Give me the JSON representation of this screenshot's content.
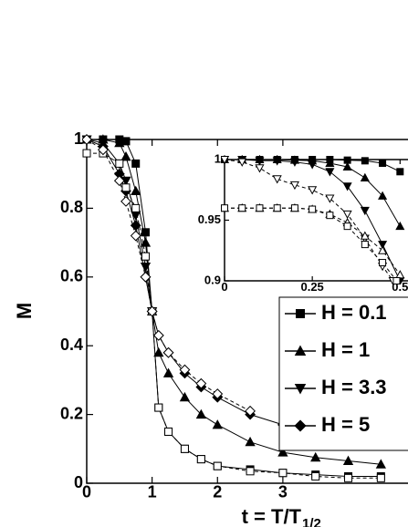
{
  "chart_data": [
    {
      "type": "line",
      "xlabel": "t = T/T",
      "xlabel_subscript": "1/2",
      "ylabel": "M",
      "xlim": [
        0,
        4.9
      ],
      "ylim": [
        0,
        1
      ],
      "xticks": [
        0,
        1,
        2,
        3
      ],
      "yticks": [
        0,
        0.2,
        0.4,
        0.6,
        0.8,
        1
      ],
      "legend": "lower right",
      "series": [
        {
          "name": "H = 0.1",
          "color": "#000000",
          "marker": "square",
          "filled": true,
          "dash": false,
          "x": [
            0,
            0.25,
            0.5,
            0.6,
            0.75,
            0.9,
            1,
            1.1,
            1.25,
            1.5,
            1.75,
            2,
            2.5,
            3,
            3.5,
            4,
            4.5
          ],
          "values": [
            1,
            1,
            1,
            0.995,
            0.93,
            0.73,
            0.5,
            0.22,
            0.15,
            0.1,
            0.07,
            0.05,
            0.04,
            0.03,
            0.025,
            0.02,
            0.02
          ]
        },
        {
          "name": "H = 1",
          "color": "#000000",
          "marker": "triangle-up",
          "filled": true,
          "dash": false,
          "x": [
            0,
            0.25,
            0.5,
            0.6,
            0.75,
            0.9,
            1,
            1.1,
            1.25,
            1.5,
            1.75,
            2,
            2.5,
            3,
            3.5,
            4,
            4.5
          ],
          "values": [
            1,
            1,
            0.99,
            0.95,
            0.85,
            0.7,
            0.5,
            0.38,
            0.32,
            0.25,
            0.2,
            0.17,
            0.12,
            0.09,
            0.075,
            0.065,
            0.055
          ]
        },
        {
          "name": "H = 3.3",
          "color": "#000000",
          "marker": "triangle-down",
          "filled": true,
          "dash": false,
          "x": [
            0,
            0.25,
            0.5,
            0.6,
            0.75,
            0.9,
            1
          ],
          "values": [
            1,
            0.99,
            0.93,
            0.88,
            0.78,
            0.63,
            0.5
          ]
        },
        {
          "name": "H = 5",
          "color": "#000000",
          "marker": "diamond",
          "filled": true,
          "dash": false,
          "x": [
            0,
            0.25,
            0.5,
            0.6,
            0.75,
            0.9,
            1,
            1.1,
            1.25,
            1.5,
            1.75,
            2,
            2.5,
            3
          ],
          "values": [
            1,
            0.98,
            0.9,
            0.85,
            0.75,
            0.6,
            0.5,
            0.43,
            0.38,
            0.32,
            0.28,
            0.25,
            0.2,
            0.17
          ]
        },
        {
          "color": "#000000",
          "marker": "square",
          "filled": false,
          "dash": true,
          "x": [
            0,
            0.25,
            0.5,
            0.6,
            0.75,
            0.9,
            1,
            1.1,
            1.25,
            1.5,
            1.75,
            2,
            2.5,
            3,
            3.5,
            4,
            4.5
          ],
          "values": [
            0.96,
            0.96,
            0.93,
            0.86,
            0.8,
            0.66,
            0.5,
            0.22,
            0.15,
            0.1,
            0.07,
            0.05,
            0.035,
            0.03,
            0.02,
            0.015,
            0.015
          ]
        },
        {
          "color": "#000000",
          "marker": "diamond",
          "filled": false,
          "dash": true,
          "x": [
            0,
            0.25,
            0.5,
            0.6,
            0.75,
            0.9,
            1,
            1.1,
            1.25,
            1.5,
            1.75,
            2,
            2.5
          ],
          "values": [
            1,
            0.97,
            0.88,
            0.82,
            0.72,
            0.6,
            0.5,
            0.43,
            0.38,
            0.33,
            0.29,
            0.26,
            0.21
          ]
        }
      ]
    },
    {
      "type": "line",
      "xlim": [
        0,
        0.52
      ],
      "ylim": [
        0.9,
        1
      ],
      "xticks": [
        0,
        0.25,
        0.5
      ],
      "yticks": [
        0.9,
        0.95,
        1
      ],
      "series": [
        {
          "color": "#000000",
          "marker": "square",
          "filled": true,
          "dash": false,
          "x": [
            0,
            0.05,
            0.1,
            0.15,
            0.2,
            0.25,
            0.3,
            0.35,
            0.4,
            0.45,
            0.5
          ],
          "values": [
            1,
            1,
            1,
            1,
            1,
            1,
            1,
            0.9995,
            0.999,
            0.997,
            0.99
          ]
        },
        {
          "color": "#000000",
          "marker": "triangle-up",
          "filled": true,
          "dash": false,
          "x": [
            0,
            0.05,
            0.1,
            0.15,
            0.2,
            0.25,
            0.3,
            0.35,
            0.4,
            0.45,
            0.5
          ],
          "values": [
            1,
            1,
            1,
            1,
            0.9995,
            0.999,
            0.997,
            0.994,
            0.985,
            0.97,
            0.945
          ]
        },
        {
          "color": "#000000",
          "marker": "triangle-down",
          "filled": true,
          "dash": false,
          "x": [
            0,
            0.05,
            0.1,
            0.15,
            0.2,
            0.25,
            0.3,
            0.35,
            0.4,
            0.45,
            0.5
          ],
          "values": [
            1,
            1,
            0.999,
            0.999,
            0.998,
            0.996,
            0.99,
            0.978,
            0.958,
            0.93,
            0.9
          ]
        },
        {
          "color": "#000000",
          "marker": "triangle-down",
          "filled": false,
          "dash": true,
          "x": [
            0,
            0.05,
            0.1,
            0.15,
            0.2,
            0.25,
            0.3,
            0.35,
            0.4,
            0.45,
            0.48
          ],
          "values": [
            1,
            0.998,
            0.993,
            0.984,
            0.979,
            0.975,
            0.968,
            0.955,
            0.935,
            0.912,
            0.9
          ]
        },
        {
          "color": "#000000",
          "marker": "triangle-up",
          "filled": false,
          "dash": true,
          "x": [
            0,
            0.05,
            0.1,
            0.15,
            0.2,
            0.25,
            0.3,
            0.35,
            0.4,
            0.45,
            0.5
          ],
          "values": [
            0.96,
            0.96,
            0.96,
            0.96,
            0.96,
            0.959,
            0.955,
            0.948,
            0.937,
            0.925,
            0.905
          ]
        },
        {
          "color": "#000000",
          "marker": "square",
          "filled": false,
          "dash": true,
          "x": [
            0,
            0.05,
            0.1,
            0.15,
            0.2,
            0.25,
            0.3,
            0.35,
            0.4,
            0.45,
            0.49
          ],
          "values": [
            0.96,
            0.96,
            0.96,
            0.96,
            0.96,
            0.959,
            0.954,
            0.945,
            0.93,
            0.915,
            0.9
          ]
        }
      ]
    }
  ]
}
